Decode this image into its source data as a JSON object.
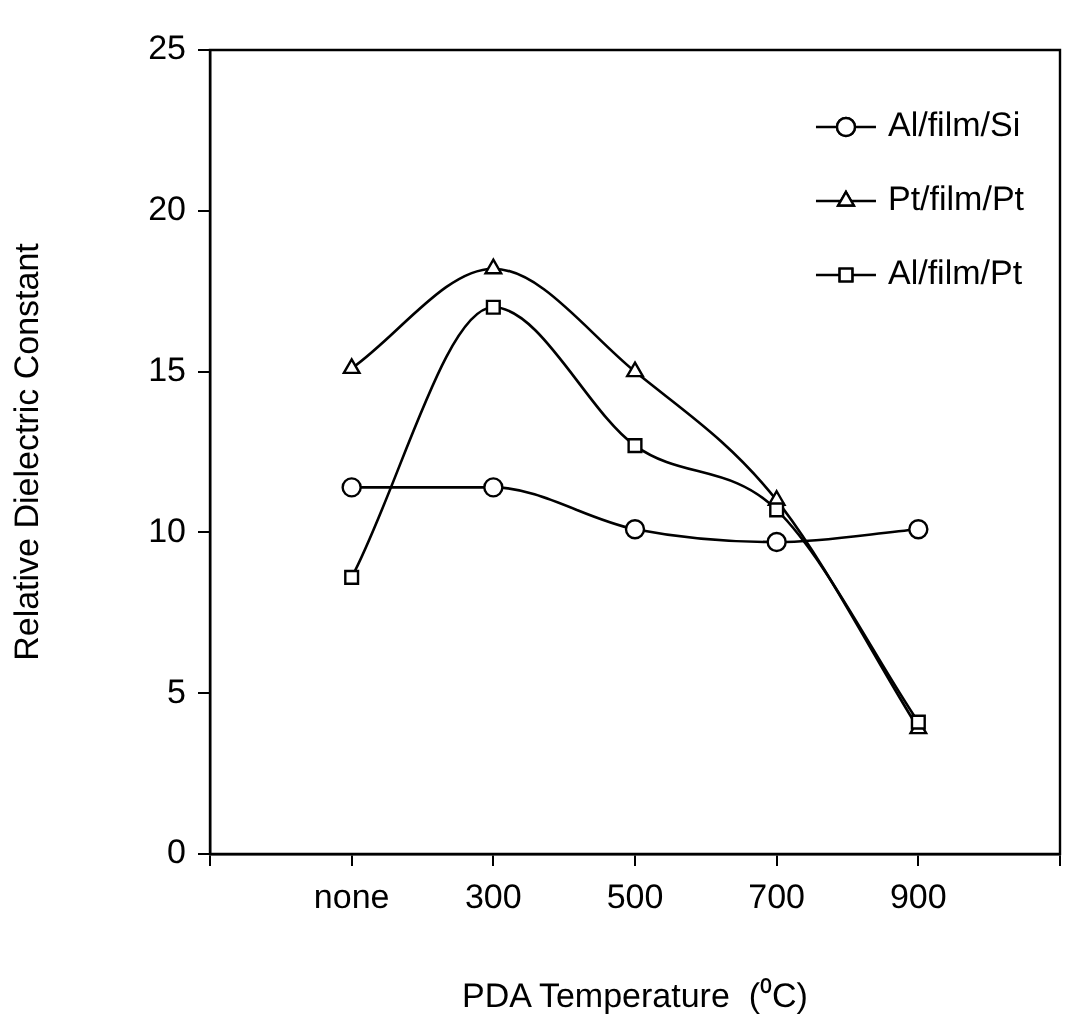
{
  "chart_data": {
    "type": "line",
    "xlabel": "PDA Temperature  (⁰C)",
    "ylabel": "Relative Dielectric Constant",
    "categories": [
      null,
      "none",
      "300",
      "500",
      "700",
      "900",
      null
    ],
    "ylim": [
      0,
      25
    ],
    "yticks": [
      0,
      5,
      10,
      15,
      20,
      25
    ],
    "grid": false,
    "legend": "top right",
    "series": [
      {
        "name": "Al/film/Si",
        "color": "#000000",
        "marker": "circle",
        "values": [
          null,
          11.4,
          11.4,
          10.1,
          9.7,
          10.1,
          null
        ]
      },
      {
        "name": "Pt/film/Pt",
        "color": "#000000",
        "marker": "triangle",
        "values": [
          null,
          15.1,
          18.2,
          15.0,
          11.0,
          3.9,
          null
        ]
      },
      {
        "name": "Al/film/Pt",
        "color": "#000000",
        "marker": "square",
        "values": [
          null,
          8.6,
          17.0,
          12.7,
          10.7,
          4.1,
          null
        ]
      }
    ]
  }
}
